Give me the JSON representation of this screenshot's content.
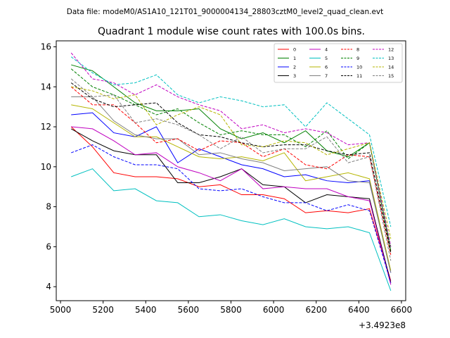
{
  "chart_data": {
    "type": "line",
    "suptitle": "Data file: modeM0/AS1A10_121T01_9000004134_28803cztM0_level2_quad_clean.evt",
    "title": "Quadrant 1 module wise count rates with 100.0s bins.",
    "xlabel": "",
    "ylabel": "",
    "x_offset_label": "+3.4923e8",
    "xlim": [
      4980,
      6620
    ],
    "ylim": [
      3.3,
      16.3
    ],
    "xticks": [
      5000,
      5200,
      5400,
      5600,
      5800,
      6000,
      6200,
      6400,
      6600
    ],
    "yticks": [
      4,
      6,
      8,
      10,
      12,
      14,
      16
    ],
    "x": [
      5050,
      5150,
      5250,
      5350,
      5450,
      5550,
      5650,
      5750,
      5850,
      5950,
      6050,
      6150,
      6250,
      6350,
      6450,
      6550
    ],
    "legend_location": "upper-right",
    "series": [
      {
        "name": "0",
        "color": "#ff0000",
        "dash": "solid",
        "values": [
          12.0,
          11.0,
          9.7,
          9.5,
          9.5,
          9.4,
          9.0,
          9.1,
          8.6,
          8.6,
          8.4,
          7.7,
          7.8,
          7.7,
          7.9,
          4.3
        ]
      },
      {
        "name": "1",
        "color": "#008000",
        "dash": "solid",
        "values": [
          15.1,
          14.8,
          14.0,
          13.2,
          12.8,
          12.8,
          12.9,
          11.9,
          11.4,
          11.7,
          11.2,
          11.8,
          10.8,
          10.5,
          11.2,
          5.8
        ]
      },
      {
        "name": "2",
        "color": "#0000ff",
        "dash": "solid",
        "values": [
          12.6,
          12.7,
          11.7,
          11.5,
          12.0,
          10.2,
          10.9,
          10.5,
          10.1,
          9.9,
          9.5,
          9.6,
          9.3,
          9.2,
          9.3,
          4.7
        ]
      },
      {
        "name": "3",
        "color": "#000000",
        "dash": "solid",
        "values": [
          11.9,
          11.3,
          10.8,
          10.6,
          10.6,
          9.2,
          9.2,
          9.5,
          9.9,
          9.1,
          9.0,
          8.2,
          8.6,
          8.5,
          8.4,
          4.2
        ]
      },
      {
        "name": "4",
        "color": "#c000c0",
        "dash": "solid",
        "values": [
          12.0,
          11.9,
          11.3,
          10.6,
          10.7,
          10.0,
          9.7,
          9.3,
          9.9,
          8.9,
          9.0,
          8.9,
          8.9,
          8.5,
          8.3,
          4.1
        ]
      },
      {
        "name": "5",
        "color": "#00c0c0",
        "dash": "solid",
        "values": [
          9.5,
          9.9,
          8.8,
          8.9,
          8.3,
          8.2,
          7.5,
          7.6,
          7.3,
          7.1,
          7.4,
          7.0,
          6.9,
          7.0,
          6.7,
          3.8
        ]
      },
      {
        "name": "6",
        "color": "#b5b500",
        "dash": "solid",
        "values": [
          13.1,
          12.9,
          12.2,
          11.5,
          11.5,
          11.0,
          10.5,
          10.4,
          10.5,
          10.3,
          10.7,
          9.3,
          9.5,
          9.7,
          9.4,
          4.8
        ]
      },
      {
        "name": "7",
        "color": "#808080",
        "dash": "solid",
        "values": [
          13.5,
          13.5,
          12.3,
          11.6,
          11.4,
          11.4,
          10.6,
          10.7,
          10.4,
          10.2,
          9.8,
          9.9,
          10.0,
          9.3,
          9.2,
          4.7
        ]
      },
      {
        "name": "8",
        "color": "#ff0000",
        "dash": "dashed",
        "values": [
          14.0,
          13.1,
          13.1,
          12.2,
          11.2,
          11.4,
          10.8,
          11.3,
          11.2,
          10.5,
          10.9,
          10.1,
          9.9,
          10.6,
          10.5,
          5.6
        ]
      },
      {
        "name": "9",
        "color": "#008000",
        "dash": "dashed",
        "values": [
          14.9,
          14.0,
          13.6,
          13.1,
          12.6,
          12.9,
          12.2,
          11.6,
          11.8,
          11.6,
          11.6,
          11.0,
          11.8,
          10.4,
          11.2,
          6.0
        ]
      },
      {
        "name": "10",
        "color": "#0000ff",
        "dash": "dashed",
        "values": [
          10.7,
          11.1,
          10.5,
          10.1,
          10.1,
          9.9,
          8.9,
          8.8,
          8.9,
          8.5,
          8.2,
          8.2,
          7.8,
          8.1,
          7.8,
          4.2
        ]
      },
      {
        "name": "11",
        "color": "#000000",
        "dash": "dashed",
        "values": [
          14.2,
          13.4,
          13.0,
          13.1,
          13.2,
          12.2,
          11.6,
          11.5,
          11.2,
          11.0,
          11.1,
          11.1,
          10.8,
          10.6,
          10.7,
          5.7
        ]
      },
      {
        "name": "12",
        "color": "#c000c0",
        "dash": "dashed",
        "values": [
          15.7,
          14.4,
          14.2,
          13.6,
          14.1,
          13.5,
          13.1,
          12.8,
          11.9,
          12.1,
          11.7,
          11.9,
          11.7,
          11.1,
          11.2,
          6.0
        ]
      },
      {
        "name": "13",
        "color": "#00c0c0",
        "dash": "dashed",
        "values": [
          15.5,
          14.7,
          14.1,
          14.2,
          14.6,
          13.6,
          13.2,
          13.5,
          13.3,
          13.0,
          13.1,
          12.0,
          13.2,
          12.4,
          11.6,
          7.0
        ]
      },
      {
        "name": "14",
        "color": "#b5b500",
        "dash": "dashed",
        "values": [
          14.0,
          13.8,
          13.4,
          13.6,
          12.1,
          12.6,
          13.0,
          12.6,
          11.1,
          11.0,
          11.3,
          11.2,
          10.6,
          10.9,
          11.2,
          6.4
        ]
      },
      {
        "name": "15",
        "color": "#808080",
        "dash": "dashed",
        "values": [
          14.4,
          13.5,
          13.6,
          12.2,
          12.4,
          12.1,
          11.6,
          10.9,
          11.5,
          10.7,
          10.9,
          10.9,
          11.5,
          10.2,
          10.5,
          5.3
        ]
      }
    ]
  }
}
